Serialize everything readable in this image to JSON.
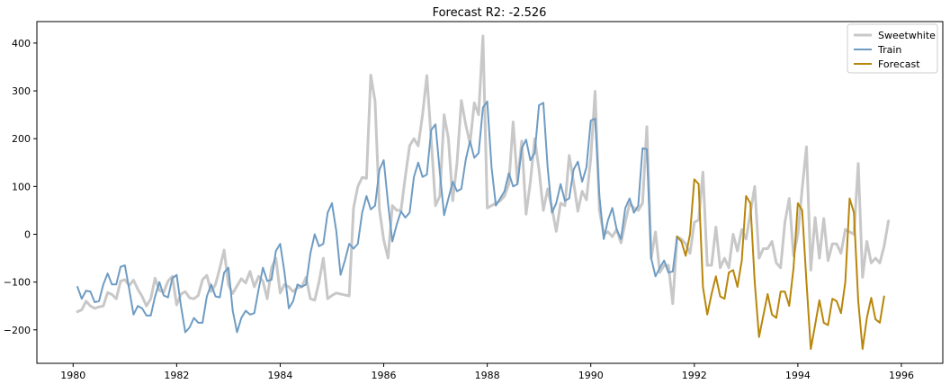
{
  "chart_data": {
    "type": "line",
    "title": "Forecast R2: -2.526",
    "xlabel": "",
    "ylabel": "",
    "xlim": [
      1979.3,
      1996.8
    ],
    "ylim": [
      -270,
      445
    ],
    "xticks": [
      1980,
      1982,
      1984,
      1986,
      1988,
      1990,
      1992,
      1994,
      1996
    ],
    "yticks": [
      -200,
      -100,
      0,
      100,
      200,
      300,
      400
    ],
    "xtick_labels": [
      "1980",
      "1982",
      "1984",
      "1986",
      "1988",
      "1990",
      "1992",
      "1994",
      "1996"
    ],
    "ytick_labels": [
      "−200",
      "−100",
      "0",
      "100",
      "200",
      "300",
      "400"
    ],
    "grid": false,
    "legend_position": "top-right",
    "x_start": 1980.0833,
    "x_step": 0.0833333,
    "series": [
      {
        "name": "Sweetwhite",
        "color": "#c8c8c8",
        "offset": 0,
        "values": [
          -162,
          -158,
          -140,
          -150,
          -155,
          -152,
          -150,
          -122,
          -126,
          -135,
          -98,
          -95,
          -107,
          -96,
          -115,
          -130,
          -150,
          -135,
          -92,
          -118,
          -121,
          -98,
          -88,
          -148,
          -125,
          -120,
          -133,
          -135,
          -128,
          -95,
          -86,
          -120,
          -105,
          -71,
          -33,
          -106,
          -124,
          -108,
          -93,
          -102,
          -78,
          -110,
          -88,
          -98,
          -135,
          -70,
          -50,
          -123,
          -105,
          -110,
          -120,
          -112,
          -110,
          -90,
          -135,
          -138,
          -100,
          -50,
          -135,
          -128,
          -123,
          -125,
          -127,
          -129,
          55,
          100,
          119,
          117,
          333,
          278,
          52,
          -12,
          -50,
          60,
          50,
          50,
          120,
          185,
          200,
          185,
          250,
          332,
          200,
          60,
          80,
          250,
          200,
          70,
          150,
          280,
          230,
          190,
          275,
          250,
          415,
          55,
          60,
          65,
          70,
          80,
          105,
          235,
          108,
          195,
          42,
          110,
          200,
          135,
          50,
          95,
          55,
          6,
          65,
          60,
          165,
          110,
          48,
          90,
          72,
          160,
          299,
          50,
          0,
          5,
          -5,
          10,
          -18,
          25,
          65,
          55,
          50,
          65,
          225,
          -50,
          5,
          -80,
          -65,
          -65,
          -145,
          -5,
          -10,
          -20,
          -40,
          25,
          30,
          130,
          -65,
          -65,
          15,
          -70,
          -50,
          -70,
          0,
          -35,
          10,
          -10,
          45,
          100,
          -50,
          -30,
          -30,
          -15,
          -60,
          -70,
          25,
          75,
          -45,
          0,
          95,
          183,
          -75,
          35,
          -50,
          33,
          -55,
          -20,
          -20,
          -40,
          10,
          5,
          0,
          148,
          -90,
          -15,
          -60,
          -50,
          -60,
          -25,
          28
        ]
      },
      {
        "name": "Train",
        "color": "#6f9cc3",
        "offset": 0,
        "values": [
          -110,
          -135,
          -118,
          -120,
          -142,
          -140,
          -105,
          -82,
          -105,
          -105,
          -68,
          -65,
          -115,
          -168,
          -150,
          -155,
          -170,
          -170,
          -130,
          -100,
          -128,
          -132,
          -92,
          -85,
          -150,
          -205,
          -195,
          -175,
          -185,
          -185,
          -130,
          -105,
          -130,
          -132,
          -80,
          -70,
          -160,
          -205,
          -175,
          -160,
          -168,
          -165,
          -115,
          -70,
          -98,
          -95,
          -35,
          -20,
          -80,
          -155,
          -140,
          -105,
          -110,
          -105,
          -40,
          0,
          -25,
          -20,
          45,
          65,
          7,
          -85,
          -55,
          -20,
          -30,
          -20,
          45,
          80,
          52,
          60,
          135,
          155,
          65,
          -15,
          20,
          48,
          35,
          45,
          120,
          150,
          120,
          125,
          218,
          230,
          130,
          40,
          75,
          110,
          90,
          95,
          155,
          195,
          160,
          170,
          265,
          278,
          140,
          60,
          75,
          90,
          128,
          100,
          105,
          180,
          198,
          155,
          170,
          270,
          275,
          140,
          45,
          65,
          105,
          70,
          75,
          135,
          152,
          110,
          140,
          238,
          242,
          80,
          -10,
          30,
          55,
          10,
          -10,
          55,
          75,
          45,
          60,
          180,
          178,
          -50,
          -88,
          -70,
          -55,
          -80,
          -78,
          -5
        ]
      },
      {
        "name": "Forecast",
        "color": "#b8860b",
        "offset": 139,
        "values": [
          -5,
          -15,
          -45,
          0,
          115,
          105,
          -110,
          -168,
          -125,
          -88,
          -130,
          -135,
          -80,
          -75,
          -110,
          -55,
          80,
          65,
          -100,
          -215,
          -170,
          -125,
          -168,
          -175,
          -120,
          -120,
          -150,
          -70,
          65,
          50,
          -100,
          -240,
          -190,
          -138,
          -185,
          -190,
          -135,
          -140,
          -165,
          -100,
          75,
          45,
          -140,
          -240,
          -175,
          -133,
          -178,
          -185,
          -130
        ]
      }
    ]
  }
}
